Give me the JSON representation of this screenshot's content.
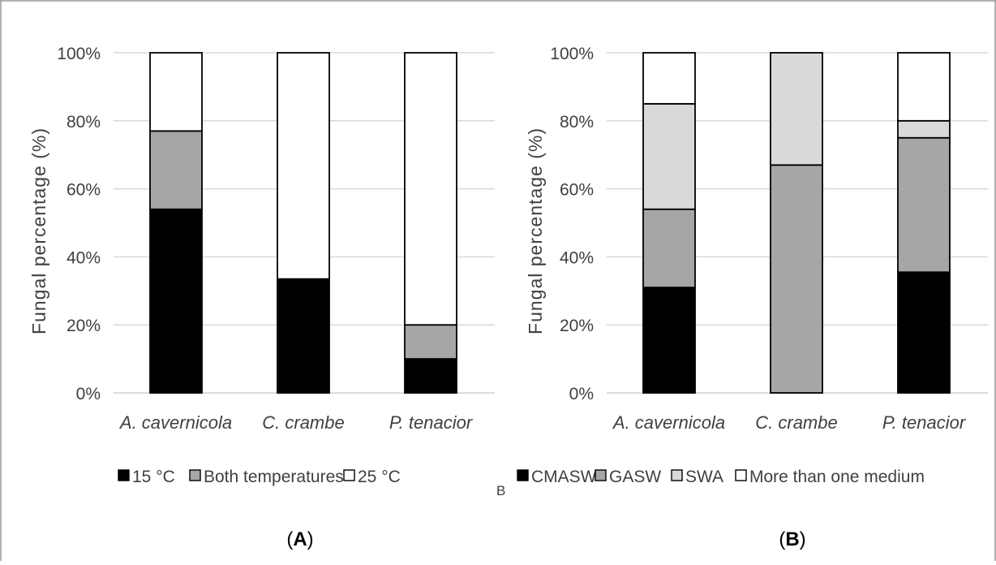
{
  "chart_data": [
    {
      "type": "bar",
      "stacked": true,
      "panel_label": "(A)",
      "ylabel": "Fungal percentage (%)",
      "ylim": [
        0,
        100
      ],
      "yticks": [
        "0%",
        "20%",
        "40%",
        "60%",
        "80%",
        "100%"
      ],
      "grid": true,
      "legend_position": "bottom",
      "categories": [
        "A. cavernicola",
        "C. crambe",
        "P. tenacior"
      ],
      "series": [
        {
          "name": "15 °C",
          "color": "#000000",
          "values": [
            54,
            33.5,
            10
          ]
        },
        {
          "name": "Both temperatures",
          "color": "#a6a6a6",
          "values": [
            23,
            0,
            10
          ]
        },
        {
          "name": "25 °C",
          "color": "#ffffff",
          "values": [
            23,
            66.5,
            80
          ]
        }
      ]
    },
    {
      "type": "bar",
      "stacked": true,
      "panel_label": "(B)",
      "ylabel": "Fungal percentage (%)",
      "ylim": [
        0,
        100
      ],
      "yticks": [
        "0%",
        "20%",
        "40%",
        "60%",
        "80%",
        "100%"
      ],
      "grid": true,
      "legend_position": "bottom",
      "categories": [
        "A. cavernicola",
        "C. crambe",
        "P. tenacior"
      ],
      "series": [
        {
          "name": "CMASW",
          "color": "#000000",
          "values": [
            31,
            0,
            35.5
          ]
        },
        {
          "name": "GASW",
          "color": "#a6a6a6",
          "values": [
            23,
            67,
            39.5
          ]
        },
        {
          "name": "SWA",
          "color": "#d9d9d9",
          "values": [
            31,
            33,
            5
          ]
        },
        {
          "name": "More than one medium",
          "color": "#ffffff",
          "values": [
            15,
            0,
            20
          ]
        }
      ]
    }
  ],
  "stray_label": "B"
}
